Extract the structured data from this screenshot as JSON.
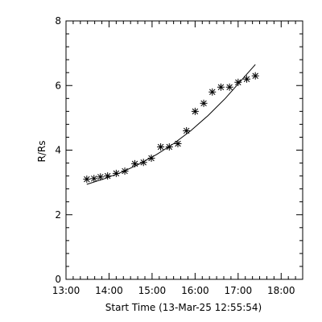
{
  "chart_data": {
    "type": "scatter",
    "title": "",
    "xlabel": "Start Time (13-Mar-25 12:55:54)",
    "ylabel": "R/Rs",
    "xlim": [
      "13:00",
      "18:30"
    ],
    "ylim": [
      0,
      8
    ],
    "x_ticks": [
      "13:00",
      "14:00",
      "15:00",
      "16:00",
      "17:00",
      "18:00"
    ],
    "y_ticks": [
      "0",
      "2",
      "4",
      "6",
      "8"
    ],
    "grid": false,
    "legend": "none",
    "colors": {
      "axes": "#000000",
      "series": "#000000",
      "background": "#ffffff"
    },
    "series": [
      {
        "marker": "asterisk",
        "x": [
          "13:29",
          "13:39",
          "13:48",
          "13:58",
          "14:10",
          "14:22",
          "14:36",
          "14:48",
          "14:59",
          "15:12",
          "15:24",
          "15:36",
          "15:48",
          "16:00",
          "16:12",
          "16:24",
          "16:36",
          "16:48",
          "17:00",
          "17:12",
          "17:24"
        ],
        "values": [
          3.1,
          3.12,
          3.17,
          3.2,
          3.28,
          3.35,
          3.58,
          3.62,
          3.75,
          4.1,
          4.1,
          4.2,
          4.6,
          5.2,
          5.45,
          5.8,
          5.95,
          5.95,
          6.1,
          6.2,
          6.3
        ]
      },
      {
        "style": "line",
        "x": [
          "13:29",
          "13:54",
          "14:18",
          "14:42",
          "15:06",
          "15:30",
          "15:54",
          "16:18",
          "16:42",
          "17:06",
          "17:24"
        ],
        "values": [
          2.94,
          3.12,
          3.32,
          3.57,
          3.86,
          4.2,
          4.6,
          5.07,
          5.6,
          6.2,
          6.65
        ]
      }
    ]
  }
}
